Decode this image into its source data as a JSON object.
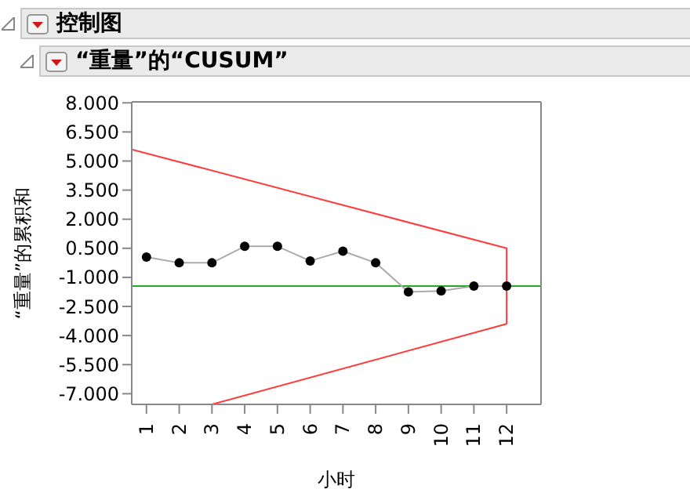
{
  "chart_data": {
    "type": "line",
    "title": "控制图",
    "subtitle": "“重量”的“CUSUM”",
    "xlabel": "小时",
    "ylabel": "“重量”的累积和",
    "x": [
      1,
      2,
      3,
      4,
      5,
      6,
      7,
      8,
      9,
      10,
      11,
      12
    ],
    "series": [
      {
        "color": "#aaaaaa",
        "marker": "circle",
        "values": [
          0.05,
          -0.25,
          -0.25,
          0.6,
          0.6,
          -0.15,
          0.35,
          -0.25,
          -1.75,
          -1.7,
          -1.45,
          -1.45
        ]
      },
      {
        "type": "line",
        "color": "#ff3b3b",
        "marker": "none",
        "x": [
          0.55,
          12,
          12,
          3
        ],
        "values": [
          5.6,
          0.5,
          -3.4,
          -7.55
        ]
      }
    ],
    "ref_lines": [
      {
        "axis": "y",
        "value": -1.45,
        "color": "#22aa22"
      }
    ],
    "xlim": [
      0.55,
      13.05
    ],
    "xticks": [
      1,
      2,
      3,
      4,
      5,
      6,
      7,
      8,
      9,
      10,
      11,
      12
    ],
    "ylim": [
      -7.55,
      8.05
    ],
    "yticks": [
      {
        "value": 8,
        "label": "8.000"
      },
      {
        "value": 6.5,
        "label": "6.500"
      },
      {
        "value": 5,
        "label": "5.000"
      },
      {
        "value": 3.5,
        "label": "3.500"
      },
      {
        "value": 2,
        "label": "2.000"
      },
      {
        "value": 0.5,
        "label": "0.500"
      },
      {
        "value": -1,
        "label": "-1.000"
      },
      {
        "value": -2.5,
        "label": "-2.500"
      },
      {
        "value": -4,
        "label": "-4.000"
      },
      {
        "value": -5.5,
        "label": "-5.500"
      },
      {
        "value": -7,
        "label": "-7.000"
      }
    ],
    "grid": false
  }
}
